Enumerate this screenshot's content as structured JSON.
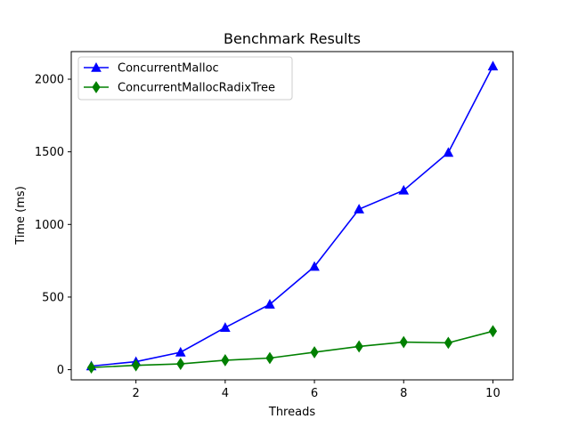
{
  "chart_data": {
    "type": "line",
    "title": "Benchmark Results",
    "xlabel": "Threads",
    "ylabel": "Time (ms)",
    "x": [
      1,
      2,
      3,
      4,
      5,
      6,
      7,
      8,
      9,
      10
    ],
    "xlim": [
      0.55,
      10.45
    ],
    "ylim": [
      -70,
      2190
    ],
    "xticks": [
      2,
      4,
      6,
      8,
      10
    ],
    "yticks": [
      0,
      500,
      1000,
      1500,
      2000
    ],
    "grid": false,
    "legend_position": "top-left",
    "series": [
      {
        "name": "ConcurrentMalloc",
        "color": "#0000ff",
        "marker": "triangle",
        "values": [
          25,
          55,
          120,
          290,
          450,
          710,
          1105,
          1235,
          1495,
          2090
        ]
      },
      {
        "name": "ConcurrentMallocRadixTree",
        "color": "#008000",
        "marker": "diamond",
        "values": [
          15,
          30,
          40,
          65,
          80,
          120,
          160,
          190,
          185,
          265
        ]
      }
    ]
  }
}
